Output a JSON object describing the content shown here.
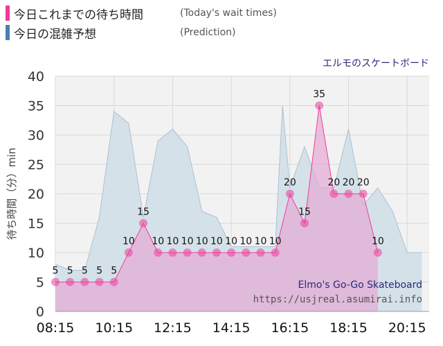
{
  "legend": {
    "today_label": "今日これまでの待ち時間",
    "today_sub": "(Today's wait times)",
    "prediction_label": "今日の混雑予想",
    "prediction_sub": "(Prediction)"
  },
  "colors": {
    "today": "#ee3c9a",
    "today_fill": "#e4a9d3",
    "prediction": "#4a7fae",
    "prediction_fill": "#d3dfe8",
    "prediction_line": "#a9c0d4",
    "plot_bg": "#f2f2f2",
    "grid": "#d8d8d8",
    "title": "#2a2a7a"
  },
  "chart_data": {
    "type": "area",
    "title": "エルモのスケートボード",
    "subtitle_en": "Elmo's Go-Go Skateboard",
    "source": "https://usjreal.asumirai.info",
    "ylabel": "待ち時間（分）min",
    "xlabel": "",
    "ylim": [
      0,
      40
    ],
    "yticks": [
      0,
      5,
      10,
      15,
      20,
      25,
      30,
      35,
      40
    ],
    "xlim": [
      "08:15",
      "21:00"
    ],
    "xticks": [
      "08:15",
      "10:15",
      "12:15",
      "14:15",
      "16:15",
      "18:15",
      "20:15"
    ],
    "grid": true,
    "series": [
      {
        "name": "今日これまでの待ち時間",
        "kind": "today",
        "points": [
          {
            "t": "08:15",
            "v": 5
          },
          {
            "t": "08:45",
            "v": 5
          },
          {
            "t": "09:15",
            "v": 5
          },
          {
            "t": "09:45",
            "v": 5
          },
          {
            "t": "10:15",
            "v": 5
          },
          {
            "t": "10:45",
            "v": 10
          },
          {
            "t": "11:15",
            "v": 15
          },
          {
            "t": "11:45",
            "v": 10
          },
          {
            "t": "12:15",
            "v": 10
          },
          {
            "t": "12:45",
            "v": 10
          },
          {
            "t": "13:15",
            "v": 10
          },
          {
            "t": "13:45",
            "v": 10
          },
          {
            "t": "14:15",
            "v": 10
          },
          {
            "t": "14:45",
            "v": 10
          },
          {
            "t": "15:15",
            "v": 10
          },
          {
            "t": "15:45",
            "v": 10
          },
          {
            "t": "16:15",
            "v": 20
          },
          {
            "t": "16:45",
            "v": 15
          },
          {
            "t": "17:15",
            "v": 35
          },
          {
            "t": "17:45",
            "v": 20
          },
          {
            "t": "18:15",
            "v": 20
          },
          {
            "t": "18:45",
            "v": 20
          },
          {
            "t": "19:15",
            "v": 10
          }
        ]
      },
      {
        "name": "今日の混雑予想",
        "kind": "prediction",
        "points": [
          {
            "t": "08:15",
            "v": 8
          },
          {
            "t": "08:45",
            "v": 7
          },
          {
            "t": "09:15",
            "v": 7
          },
          {
            "t": "09:45",
            "v": 16
          },
          {
            "t": "10:15",
            "v": 34
          },
          {
            "t": "10:45",
            "v": 32
          },
          {
            "t": "11:15",
            "v": 16
          },
          {
            "t": "11:45",
            "v": 29
          },
          {
            "t": "12:15",
            "v": 31
          },
          {
            "t": "12:45",
            "v": 28
          },
          {
            "t": "13:15",
            "v": 17
          },
          {
            "t": "13:45",
            "v": 16
          },
          {
            "t": "14:15",
            "v": 11
          },
          {
            "t": "14:45",
            "v": 11
          },
          {
            "t": "15:15",
            "v": 11
          },
          {
            "t": "15:45",
            "v": 11
          },
          {
            "t": "16:00",
            "v": 35
          },
          {
            "t": "16:15",
            "v": 21
          },
          {
            "t": "16:45",
            "v": 28
          },
          {
            "t": "17:15",
            "v": 21
          },
          {
            "t": "17:45",
            "v": 21
          },
          {
            "t": "18:15",
            "v": 31
          },
          {
            "t": "18:45",
            "v": 18
          },
          {
            "t": "19:15",
            "v": 21
          },
          {
            "t": "19:45",
            "v": 17
          },
          {
            "t": "20:15",
            "v": 10
          },
          {
            "t": "20:45",
            "v": 10
          }
        ]
      }
    ]
  }
}
